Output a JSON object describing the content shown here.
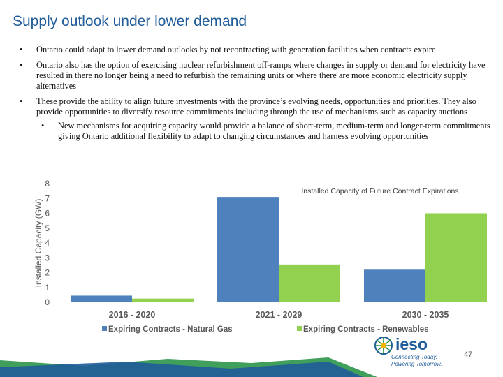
{
  "slide": {
    "title": "Supply outlook under lower demand",
    "bullets": [
      {
        "text": "Ontario could adapt to lower demand outlooks by not recontracting with generation facilities when contracts expire"
      },
      {
        "text": "Ontario also has the option of exercising nuclear refurbishment off-ramps where changes in supply or demand for electricity have resulted in there no longer being a need to refurbish the remaining units or where there are more economic electricity supply alternatives"
      },
      {
        "text": "These provide the ability to align future investments with the province’s evolving needs, opportunities and priorities. They also provide opportunities to diversify resource commitments including through the use of mechanisms such as capacity auctions"
      }
    ],
    "sub_bullet": "New mechanisms for acquiring capacity would provide a balance of short-term, medium-term and longer-term commitments giving Ontario additional flexibility to adapt to changing circumstances and harness evolving opportunities",
    "bullet_char": "•",
    "page_number": "47"
  },
  "logo": {
    "word": "ieso",
    "tagline1": "Connecting Today.",
    "tagline2": "Powering Tomorrow."
  },
  "colors": {
    "title": "#1f5c99",
    "gas": "#4f81bd",
    "renewables": "#92d050",
    "footer_green": "#1e8e3e",
    "footer_blue": "#1f5c99"
  },
  "chart_data": {
    "type": "bar",
    "title": "Installed Capacity of Future Contract Expirations",
    "ylabel": "Installed Capacity (GW)",
    "xlabel": "",
    "ylim": [
      0,
      8
    ],
    "yticks": [
      0,
      1,
      2,
      3,
      4,
      5,
      6,
      7,
      8
    ],
    "categories": [
      "2016 - 2020",
      "2021 - 2029",
      "2030 - 2035"
    ],
    "series": [
      {
        "name": "Expiring Contracts - Natural Gas",
        "values": [
          0.45,
          7.1,
          2.2
        ],
        "color": "#4f81bd"
      },
      {
        "name": "Expiring Contracts - Renewables",
        "values": [
          0.25,
          2.55,
          6.0
        ],
        "color": "#92d050"
      }
    ],
    "legend": "bottom",
    "grid": false
  }
}
